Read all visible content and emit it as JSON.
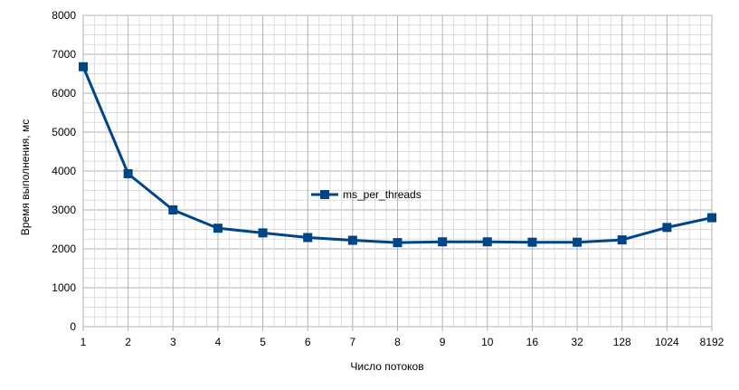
{
  "chart_data": {
    "type": "line",
    "title": "",
    "xlabel": "Число потоков",
    "ylabel": "Время выполнения, мс",
    "categories": [
      "1",
      "2",
      "3",
      "4",
      "5",
      "6",
      "7",
      "8",
      "9",
      "10",
      "16",
      "32",
      "128",
      "1024",
      "8192"
    ],
    "series": [
      {
        "name": "ms_per_threads",
        "values": [
          6680,
          3930,
          3000,
          2530,
          2410,
          2290,
          2220,
          2160,
          2180,
          2180,
          2170,
          2170,
          2230,
          2550,
          2800
        ],
        "color": "#004586"
      }
    ],
    "ylim": [
      0,
      8000
    ],
    "y_ticks": [
      "0",
      "1000",
      "2000",
      "3000",
      "4000",
      "5000",
      "6000",
      "7000",
      "8000"
    ],
    "grid": true,
    "legend_position": "center",
    "grid_color": "#b3b3b3"
  }
}
